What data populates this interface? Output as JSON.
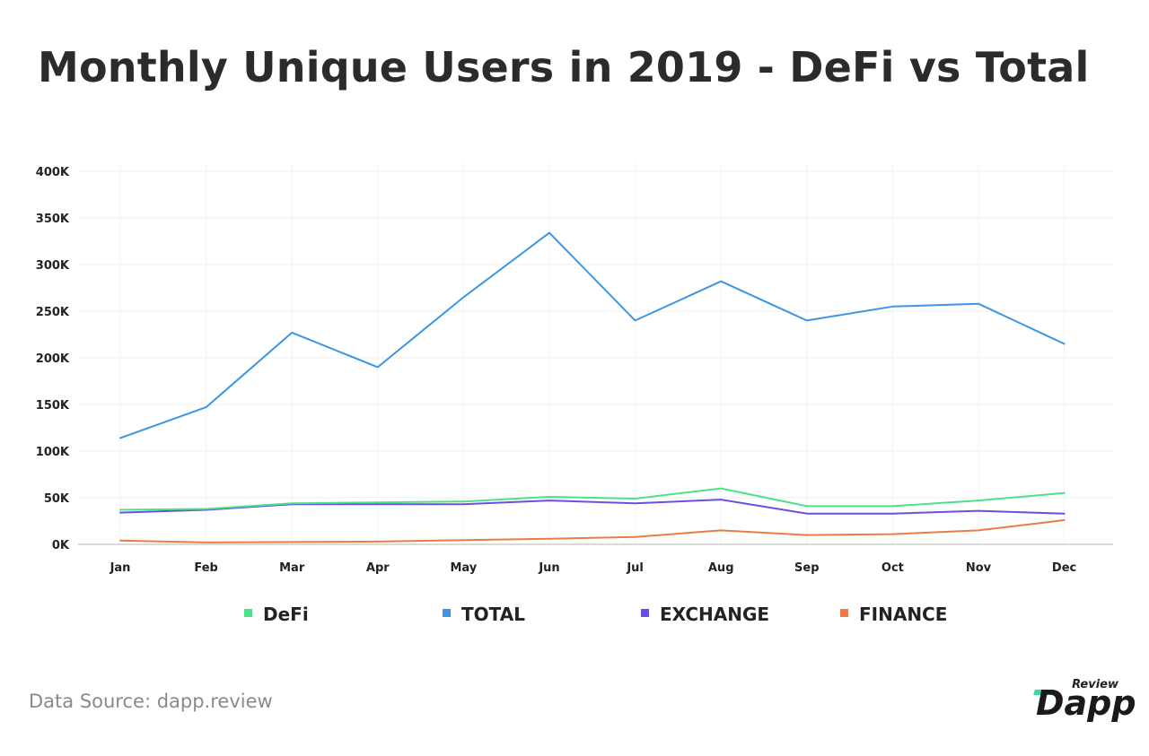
{
  "title": "Monthly Unique Users in 2019 - DeFi vs Total",
  "source": "Data Source: dapp.review",
  "logo": {
    "small_text": "Review",
    "main_text": "Dapp",
    "accent_color": "#3fd3a8"
  },
  "chart_data": {
    "type": "line",
    "title": "Monthly Unique Users in 2019 - DeFi vs Total",
    "xlabel": "",
    "ylabel": "",
    "categories": [
      "Jan",
      "Feb",
      "Mar",
      "Apr",
      "May",
      "Jun",
      "Jul",
      "Aug",
      "Sep",
      "Oct",
      "Nov",
      "Dec"
    ],
    "ylim": [
      0,
      400000
    ],
    "yticks": [
      0,
      50000,
      100000,
      150000,
      200000,
      250000,
      300000,
      350000,
      400000
    ],
    "ytick_labels": [
      "0K",
      "50K",
      "100K",
      "150K",
      "200K",
      "250K",
      "300K",
      "350K",
      "400K"
    ],
    "grid": true,
    "legend_position": "bottom",
    "series": [
      {
        "name": "DeFi",
        "color": "#4fe08a",
        "values": [
          37000,
          38000,
          44000,
          45000,
          46000,
          51000,
          49000,
          60000,
          41000,
          41000,
          47000,
          55000
        ]
      },
      {
        "name": "TOTAL",
        "color": "#3b97e3",
        "values": [
          114000,
          147000,
          227000,
          190000,
          265000,
          334000,
          240000,
          282000,
          240000,
          255000,
          258000,
          215000
        ]
      },
      {
        "name": "EXCHANGE",
        "color": "#6b4fe0",
        "values": [
          34000,
          37000,
          43000,
          43000,
          43000,
          47000,
          44000,
          48000,
          33000,
          33000,
          36000,
          33000
        ]
      },
      {
        "name": "FINANCE",
        "color": "#ec7c44",
        "values": [
          4000,
          2000,
          2500,
          3000,
          4500,
          6000,
          8000,
          15000,
          10000,
          11000,
          15000,
          26000
        ]
      }
    ]
  }
}
